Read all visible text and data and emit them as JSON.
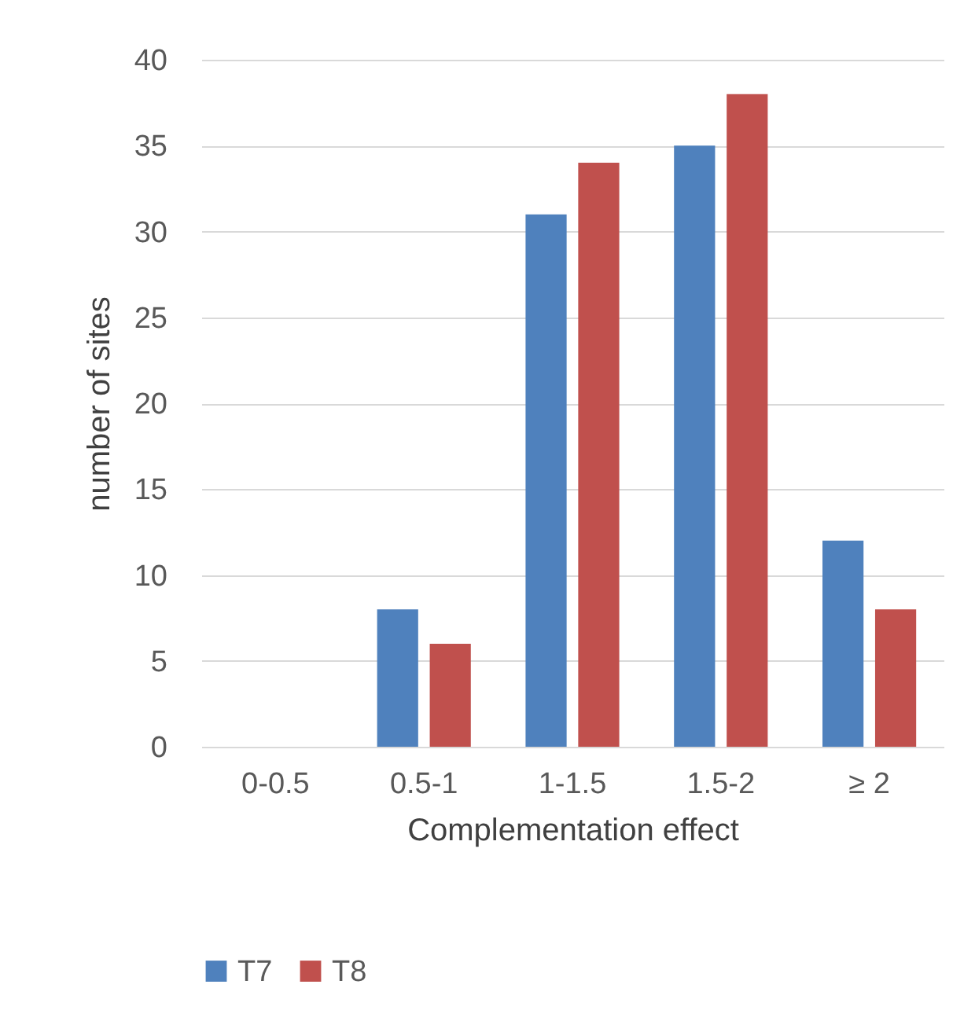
{
  "chart_data": {
    "type": "bar",
    "xlabel": "Complementation effect",
    "ylabel": "number of sites",
    "categories": [
      "0-0.5",
      "0.5-1",
      "1-1.5",
      "1.5-2",
      "≥ 2"
    ],
    "series": [
      {
        "name": "T7",
        "color": "#4f81bd",
        "values": [
          0,
          8,
          31,
          35,
          12
        ]
      },
      {
        "name": "T8",
        "color": "#c0504d",
        "values": [
          0,
          6,
          34,
          38,
          8
        ]
      }
    ],
    "ylim": [
      0,
      40
    ],
    "yticks": [
      0,
      5,
      10,
      15,
      20,
      25,
      30,
      35,
      40
    ],
    "grid": "y",
    "legend": "bottom"
  }
}
